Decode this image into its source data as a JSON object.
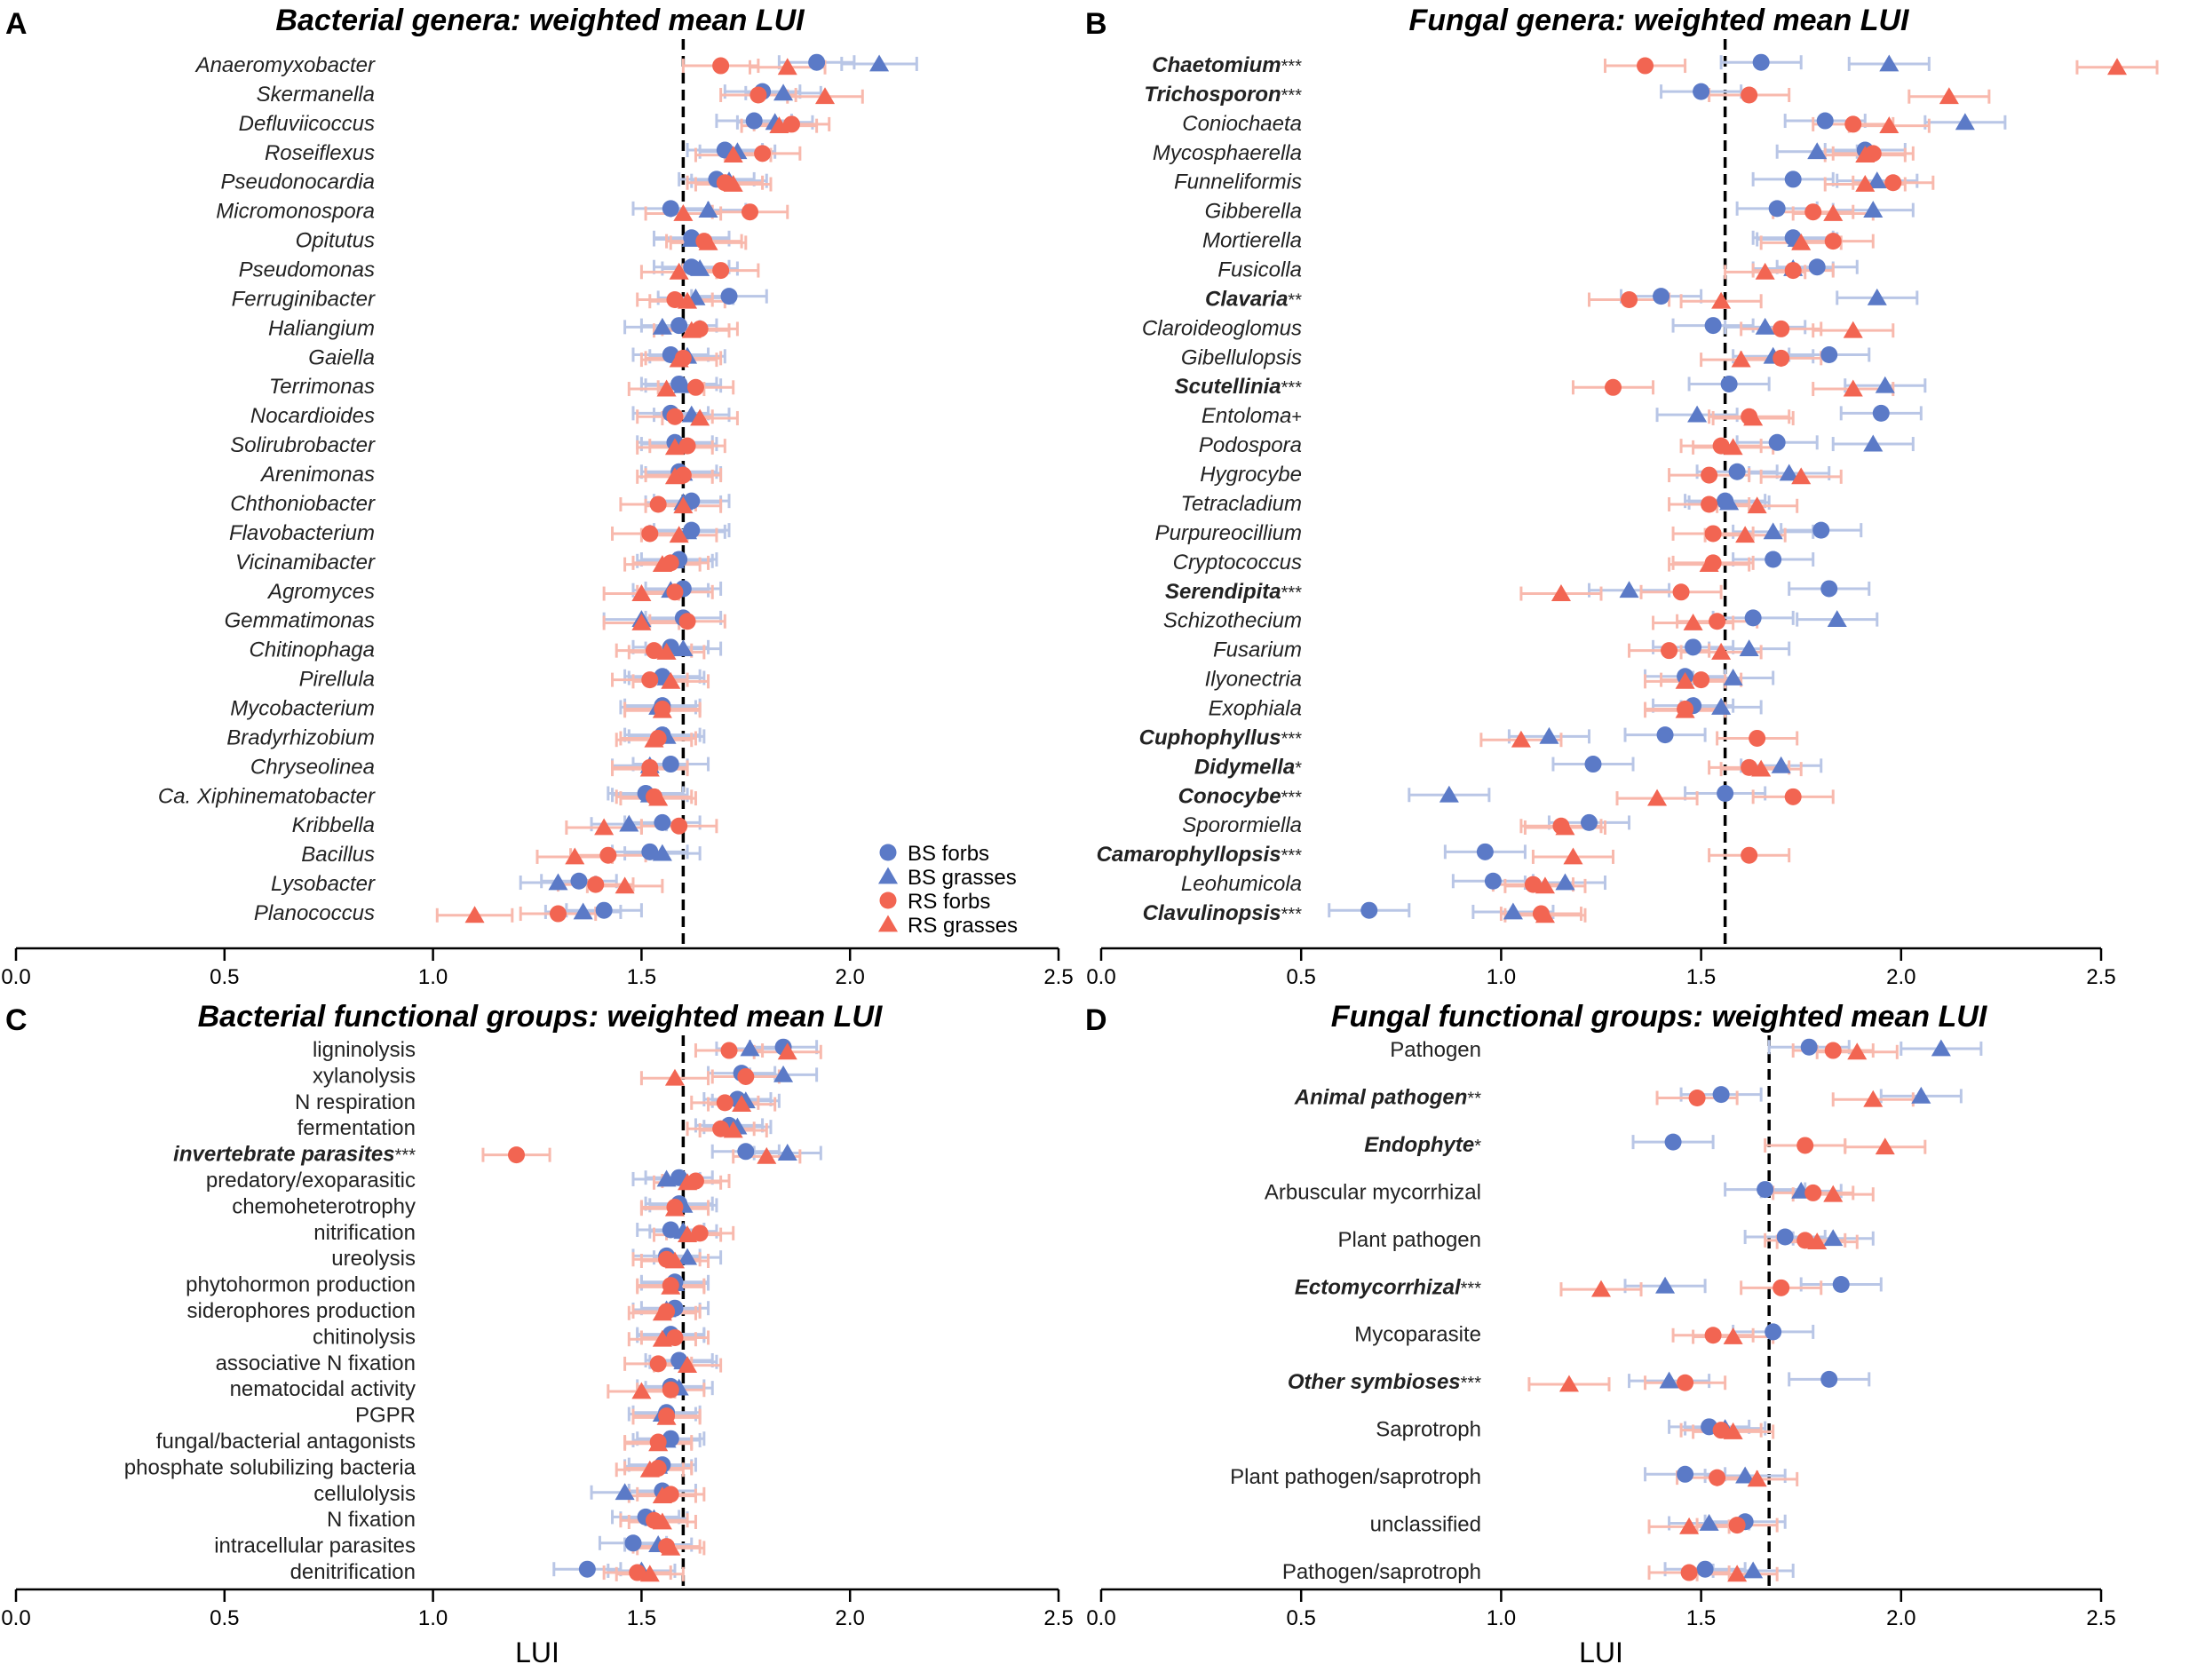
{
  "colors": {
    "bs": "#5b7ac7",
    "rs": "#f26552",
    "bs_light": "#b9c6e6",
    "rs_light": "#f8b9ad",
    "axis": "#000000",
    "text": "#222222"
  },
  "legend": [
    "BS forbs",
    "BS grasses",
    "RS forbs",
    "RS grasses"
  ],
  "xlabel": "LUI",
  "chart_data": [
    {
      "type": "scatter",
      "panel": "A",
      "title": "Bacterial genera: weighted mean LUI",
      "xlim": [
        0,
        2.5
      ],
      "xticks": [
        "0.0",
        "0.5",
        "1.0",
        "1.5",
        "2.0",
        "2.5"
      ],
      "ref": 1.6,
      "italic_labels": true,
      "err": 0.09,
      "categories": [
        "Anaeromyxobacter",
        "Skermanella",
        "Defluviicoccus",
        "Roseiflexus",
        "Pseudonocardia",
        "Micromonospora",
        "Opitutus",
        "Pseudomonas",
        "Ferruginibacter",
        "Haliangium",
        "Gaiella",
        "Terrimonas",
        "Nocardioides",
        "Solirubrobacter",
        "Arenimonas",
        "Chthoniobacter",
        "Flavobacterium",
        "Vicinamibacter",
        "Agromyces",
        "Gemmatimonas",
        "Chitinophaga",
        "Pirellula",
        "Mycobacterium",
        "Bradyrhizobium",
        "Chryseolinea",
        "Ca. Xiphinematobacter",
        "Kribbella",
        "Bacillus",
        "Lysobacter",
        "Planococcus"
      ],
      "sig": [
        "",
        "",
        "",
        "",
        "",
        "",
        "",
        "",
        "",
        "",
        "",
        "",
        "",
        "",
        "",
        "",
        "",
        "",
        "",
        "",
        "",
        "",
        "",
        "",
        "",
        "",
        "",
        "",
        "",
        ""
      ],
      "series": [
        {
          "name": "BS forbs",
          "values": [
            1.92,
            1.79,
            1.77,
            1.7,
            1.68,
            1.57,
            1.62,
            1.62,
            1.71,
            1.59,
            1.57,
            1.59,
            1.57,
            1.58,
            1.59,
            1.62,
            1.62,
            1.59,
            1.6,
            1.6,
            1.57,
            1.55,
            1.55,
            1.55,
            1.57,
            1.51,
            1.55,
            1.52,
            1.35,
            1.41
          ]
        },
        {
          "name": "BS grasses",
          "values": [
            2.07,
            1.84,
            1.82,
            1.73,
            1.71,
            1.66,
            1.62,
            1.64,
            1.63,
            1.55,
            1.61,
            1.6,
            1.62,
            1.59,
            1.6,
            1.6,
            1.61,
            1.58,
            1.57,
            1.5,
            1.6,
            1.56,
            1.54,
            1.56,
            1.52,
            1.52,
            1.47,
            1.55,
            1.3,
            1.36
          ]
        },
        {
          "name": "RS forbs",
          "values": [
            1.69,
            1.78,
            1.86,
            1.79,
            1.7,
            1.76,
            1.65,
            1.69,
            1.58,
            1.64,
            1.6,
            1.63,
            1.58,
            1.61,
            1.6,
            1.54,
            1.52,
            1.57,
            1.58,
            1.61,
            1.53,
            1.52,
            1.55,
            1.54,
            1.52,
            1.53,
            1.59,
            1.42,
            1.39,
            1.3
          ]
        },
        {
          "name": "RS grasses",
          "values": [
            1.85,
            1.94,
            1.83,
            1.72,
            1.72,
            1.6,
            1.66,
            1.59,
            1.61,
            1.62,
            1.59,
            1.56,
            1.64,
            1.58,
            1.58,
            1.6,
            1.59,
            1.55,
            1.5,
            1.5,
            1.56,
            1.57,
            1.55,
            1.53,
            1.52,
            1.54,
            1.41,
            1.34,
            1.46,
            1.1
          ]
        }
      ]
    },
    {
      "type": "scatter",
      "panel": "B",
      "title": "Fungal genera: weighted mean LUI",
      "xlim": [
        0,
        2.5
      ],
      "xticks": [
        "0.0",
        "0.5",
        "1.0",
        "1.5",
        "2.0",
        "2.5"
      ],
      "ref": 1.56,
      "italic_labels": true,
      "err": 0.1,
      "categories": [
        "Chaetomium",
        "Trichosporon",
        "Coniochaeta",
        "Mycosphaerella",
        "Funneliformis",
        "Gibberella",
        "Mortierella",
        "Fusicolla",
        "Clavaria",
        "Claroideoglomus",
        "Gibellulopsis",
        "Scutellinia",
        "Entoloma",
        "Podospora",
        "Hygrocybe",
        "Tetracladium",
        "Purpureocillium",
        "Cryptococcus",
        "Serendipita",
        "Schizothecium",
        "Fusarium",
        "Ilyonectria",
        "Exophiala",
        "Cuphophyllus",
        "Didymella",
        "Conocybe",
        "Sporormiella",
        "Camarophyllopsis",
        "Leohumicola",
        "Clavulinopsis"
      ],
      "sig": [
        "***",
        "***",
        "",
        "",
        "",
        "",
        "",
        "",
        "**",
        "",
        "",
        "***",
        "+",
        "",
        "",
        "",
        "",
        "",
        "***",
        "",
        "",
        "",
        "",
        "***",
        "*",
        "***",
        "",
        "***",
        "",
        "***"
      ],
      "series": [
        {
          "name": "BS forbs",
          "values": [
            1.65,
            1.5,
            1.81,
            1.91,
            1.73,
            1.69,
            1.73,
            1.79,
            1.4,
            1.53,
            1.82,
            1.57,
            1.95,
            1.69,
            1.59,
            1.56,
            1.8,
            1.68,
            1.82,
            1.63,
            1.48,
            1.46,
            1.48,
            1.41,
            1.23,
            1.56,
            1.22,
            0.96,
            0.98,
            0.67
          ]
        },
        {
          "name": "BS grasses",
          "values": [
            1.97,
            null,
            2.16,
            1.79,
            1.94,
            1.93,
            1.74,
            1.73,
            1.94,
            1.66,
            1.68,
            1.96,
            1.49,
            1.93,
            1.72,
            1.57,
            1.68,
            null,
            1.32,
            1.84,
            1.62,
            1.58,
            1.55,
            1.12,
            1.7,
            0.87,
            null,
            null,
            1.16,
            1.03
          ]
        },
        {
          "name": "RS forbs",
          "values": [
            1.36,
            1.62,
            1.88,
            1.93,
            1.98,
            1.78,
            1.83,
            1.73,
            1.32,
            1.7,
            1.7,
            1.28,
            1.62,
            1.55,
            1.52,
            1.52,
            1.53,
            1.53,
            1.45,
            1.54,
            1.42,
            1.5,
            1.46,
            1.64,
            1.62,
            1.73,
            1.15,
            1.62,
            1.08,
            1.1
          ]
        },
        {
          "name": "RS grasses",
          "values": [
            2.54,
            2.12,
            1.97,
            1.91,
            1.91,
            1.83,
            1.75,
            1.66,
            1.55,
            1.88,
            1.6,
            1.88,
            1.63,
            1.58,
            1.75,
            1.64,
            1.61,
            1.52,
            1.15,
            1.48,
            1.55,
            1.46,
            1.46,
            1.05,
            1.65,
            1.39,
            1.16,
            1.18,
            1.11,
            1.11
          ]
        }
      ]
    },
    {
      "type": "scatter",
      "panel": "C",
      "title": "Bacterial functional groups: weighted mean LUI",
      "xlim": [
        0,
        2.5
      ],
      "xticks": [
        "0.0",
        "0.5",
        "1.0",
        "1.5",
        "2.0",
        "2.5"
      ],
      "ref": 1.6,
      "italic_labels": false,
      "err": 0.08,
      "categories": [
        "ligninolysis",
        "xylanolysis",
        "N respiration",
        "fermentation",
        "invertebrate parasites",
        "predatory/exoparasitic",
        "chemoheterotrophy",
        "nitrification",
        "ureolysis",
        "phytohormon production",
        "siderophores production",
        "chitinolysis",
        "associative N fixation",
        "nematocidal activity",
        "PGPR",
        "fungal/bacterial antagonists",
        "phosphate solubilizing bacteria",
        "cellulolysis",
        "N fixation",
        "intracellular parasites",
        "denitrification"
      ],
      "bold_labels": [
        "invertebrate parasites"
      ],
      "sig": [
        "",
        "",
        "",
        "",
        "***",
        "",
        "",
        "",
        "",
        "",
        "",
        "",
        "",
        "",
        "",
        "",
        "",
        "",
        "",
        "",
        ""
      ],
      "series": [
        {
          "name": "BS forbs",
          "values": [
            1.84,
            1.74,
            1.73,
            1.71,
            1.75,
            1.59,
            1.59,
            1.57,
            1.56,
            1.58,
            1.58,
            1.57,
            1.59,
            1.57,
            1.56,
            1.57,
            1.55,
            1.55,
            1.51,
            1.48,
            1.37
          ]
        },
        {
          "name": "BS grasses",
          "values": [
            1.76,
            1.84,
            1.75,
            1.73,
            1.85,
            1.56,
            1.6,
            1.6,
            1.61,
            1.58,
            1.56,
            1.57,
            1.6,
            1.59,
            1.55,
            1.56,
            1.54,
            1.46,
            1.53,
            1.54,
            1.5
          ]
        },
        {
          "name": "RS forbs",
          "values": [
            1.71,
            1.75,
            1.7,
            1.69,
            1.2,
            1.63,
            1.58,
            1.64,
            1.56,
            1.57,
            1.56,
            1.58,
            1.54,
            1.57,
            1.56,
            1.54,
            1.54,
            1.57,
            1.53,
            1.56,
            1.49
          ]
        },
        {
          "name": "RS grasses",
          "values": [
            1.85,
            1.58,
            1.74,
            1.72,
            1.8,
            1.61,
            1.58,
            1.61,
            1.58,
            1.57,
            1.55,
            1.55,
            1.61,
            1.5,
            1.56,
            1.54,
            1.52,
            1.55,
            1.55,
            1.57,
            1.52
          ]
        }
      ]
    },
    {
      "type": "scatter",
      "panel": "D",
      "title": "Fungal functional groups: weighted mean LUI",
      "xlim": [
        0,
        2.5
      ],
      "xticks": [
        "0.0",
        "0.5",
        "1.0",
        "1.5",
        "2.0",
        "2.5"
      ],
      "ref": 1.67,
      "italic_labels": false,
      "err": 0.1,
      "categories": [
        "Pathogen",
        "Animal pathogen",
        "Endophyte",
        "Arbuscular mycorrhizal",
        "Plant pathogen",
        "Ectomycorrhizal",
        "Mycoparasite",
        "Other symbioses",
        "Saprotroph",
        "Plant pathogen/saprotroph",
        "unclassified",
        "Pathogen/saprotroph"
      ],
      "bold_labels": [
        "Animal pathogen",
        "Endophyte",
        "Ectomycorrhizal",
        "Other symbioses"
      ],
      "sig": [
        "",
        "**",
        "*",
        "",
        "",
        "***",
        "",
        "***",
        "",
        "",
        "",
        ""
      ],
      "series": [
        {
          "name": "BS forbs",
          "values": [
            1.77,
            1.55,
            1.43,
            1.66,
            1.71,
            1.85,
            1.68,
            1.82,
            1.52,
            1.46,
            1.61,
            1.51
          ]
        },
        {
          "name": "BS grasses",
          "values": [
            2.1,
            2.05,
            null,
            1.75,
            1.83,
            1.41,
            null,
            1.42,
            1.56,
            1.61,
            1.52,
            1.63
          ]
        },
        {
          "name": "RS forbs",
          "values": [
            1.83,
            1.49,
            1.76,
            1.78,
            1.76,
            1.7,
            1.53,
            1.46,
            1.55,
            1.54,
            1.59,
            1.47
          ]
        },
        {
          "name": "RS grasses",
          "values": [
            1.89,
            1.93,
            1.96,
            1.83,
            1.79,
            1.25,
            1.58,
            1.17,
            1.58,
            1.64,
            1.47,
            1.59
          ]
        }
      ]
    }
  ]
}
